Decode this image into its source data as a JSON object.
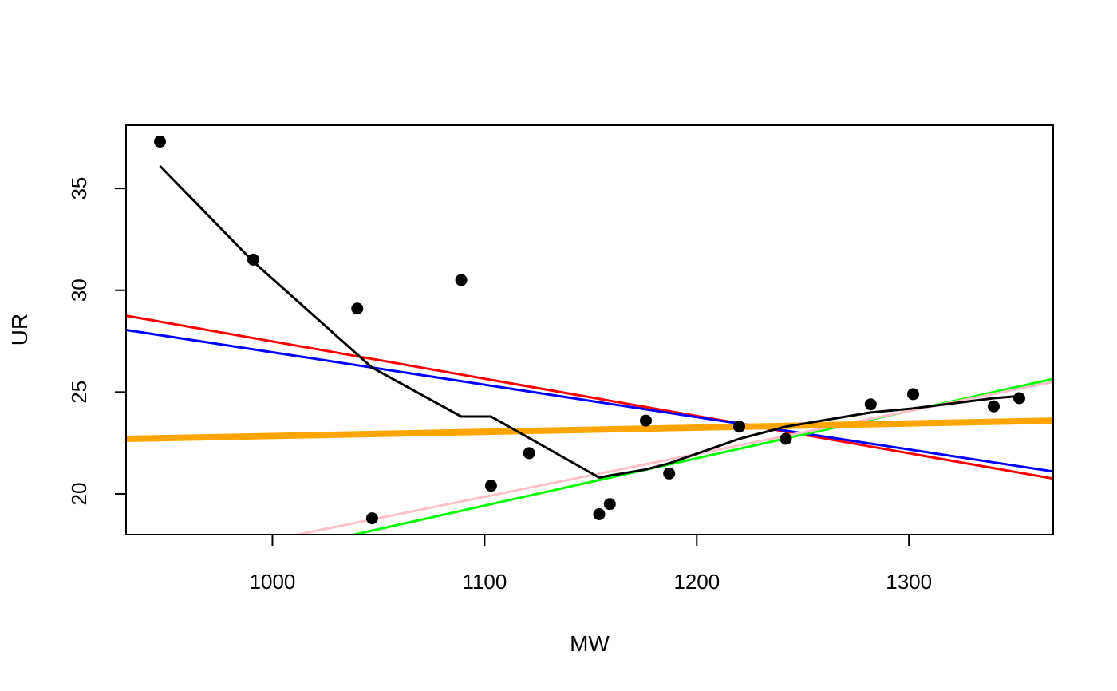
{
  "chart_data": {
    "type": "scatter",
    "title": "",
    "xlabel": "MW",
    "ylabel": "UR",
    "xlim": [
      931,
      1368
    ],
    "ylim": [
      18.0,
      38.1
    ],
    "x_ticks": [
      1000,
      1100,
      1200,
      1300
    ],
    "y_ticks": [
      20,
      25,
      30,
      35
    ],
    "x_tick_labels": [
      "1000",
      "1100",
      "1200",
      "1300"
    ],
    "y_tick_labels": [
      "20",
      "25",
      "30",
      "35"
    ],
    "grid": false,
    "legend": "none",
    "points": [
      {
        "x": 947,
        "y": 37.3
      },
      {
        "x": 991,
        "y": 31.5
      },
      {
        "x": 1040,
        "y": 29.1
      },
      {
        "x": 1047,
        "y": 18.8
      },
      {
        "x": 1089,
        "y": 30.5
      },
      {
        "x": 1103,
        "y": 20.4
      },
      {
        "x": 1121,
        "y": 22.0
      },
      {
        "x": 1154,
        "y": 19.0
      },
      {
        "x": 1159,
        "y": 19.5
      },
      {
        "x": 1176,
        "y": 23.6
      },
      {
        "x": 1187,
        "y": 21.0
      },
      {
        "x": 1220,
        "y": 23.3
      },
      {
        "x": 1242,
        "y": 22.7
      },
      {
        "x": 1282,
        "y": 24.4
      },
      {
        "x": 1302,
        "y": 24.9
      },
      {
        "x": 1340,
        "y": 24.3
      },
      {
        "x": 1352,
        "y": 24.7
      }
    ],
    "series": [
      {
        "kind": "line",
        "color": "#ff0000",
        "width": 3,
        "x": [
          931,
          1368
        ],
        "y": [
          28.75,
          20.75
        ]
      },
      {
        "kind": "line",
        "color": "#0000ff",
        "width": 3,
        "x": [
          931,
          1368
        ],
        "y": [
          28.05,
          21.1
        ]
      },
      {
        "kind": "line",
        "color": "#00ff00",
        "width": 3,
        "x": [
          931,
          1368
        ],
        "y": [
          15.5,
          25.65
        ]
      },
      {
        "kind": "line",
        "color": "#ffc0cb",
        "width": 3,
        "x": [
          931,
          1368
        ],
        "y": [
          16.3,
          25.5
        ]
      },
      {
        "kind": "line",
        "color": "#ffa500",
        "width": 8,
        "x": [
          931,
          1368
        ],
        "y": [
          22.7,
          23.6
        ]
      },
      {
        "kind": "line",
        "color": "#000000",
        "width": 3,
        "x": [
          947,
          991,
          1047,
          1089,
          1103,
          1154,
          1159,
          1176,
          1187,
          1220,
          1242,
          1282,
          1302,
          1340,
          1352
        ],
        "y": [
          36.1,
          31.4,
          26.2,
          23.8,
          23.8,
          20.8,
          20.9,
          21.2,
          21.5,
          22.7,
          23.3,
          24.0,
          24.2,
          24.7,
          24.8
        ]
      }
    ]
  }
}
